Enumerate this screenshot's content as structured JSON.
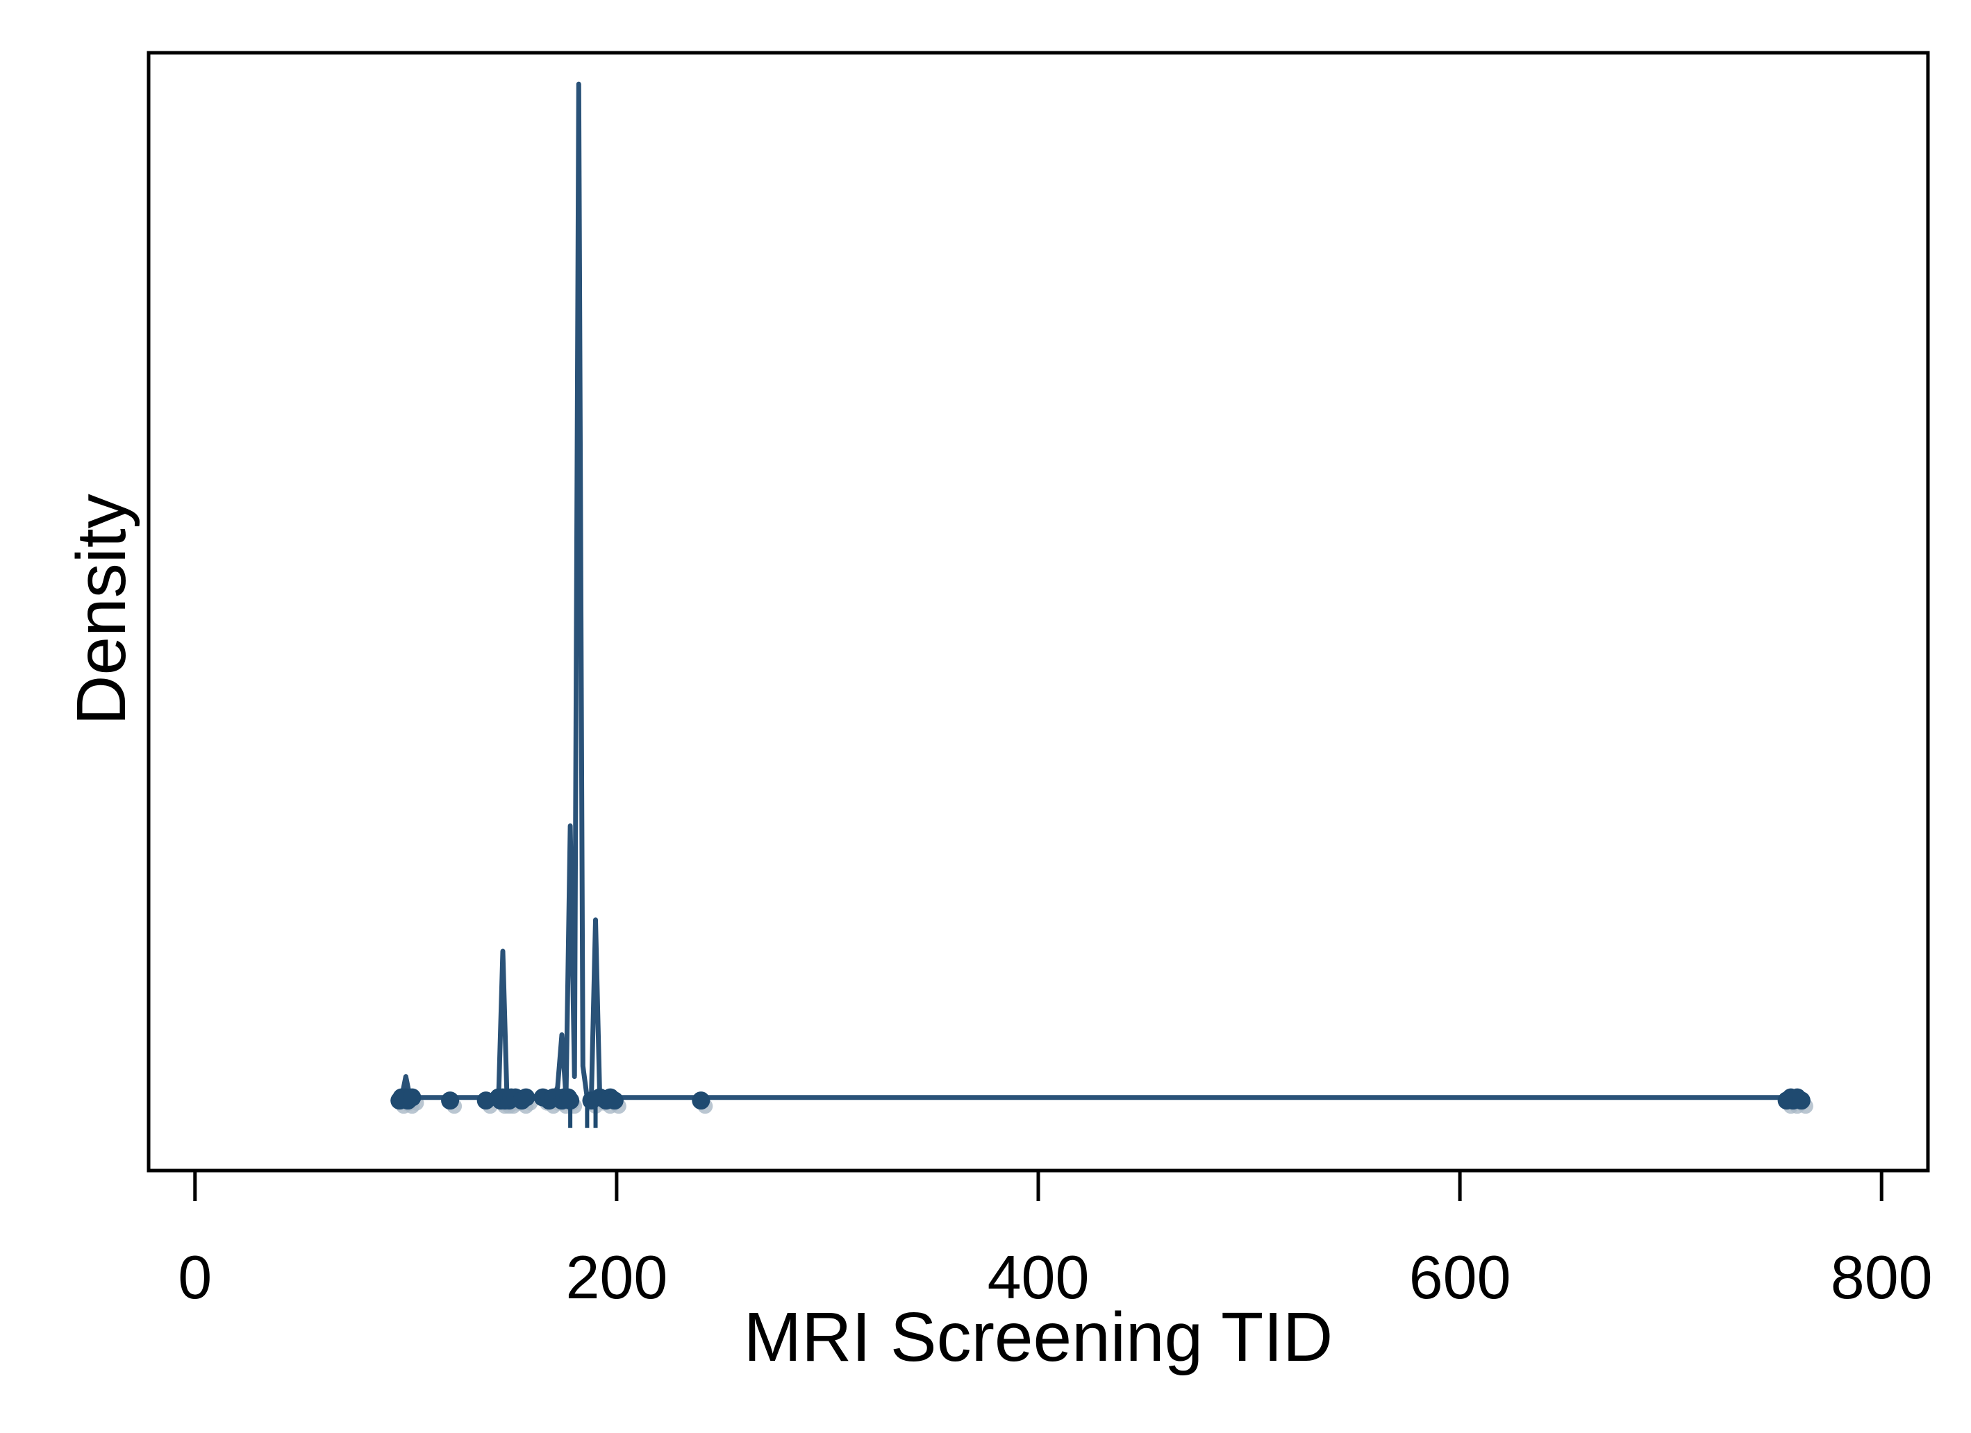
{
  "chart_data": {
    "type": "line",
    "title": "",
    "xlabel": "MRI Screening TID",
    "ylabel": "Density",
    "xlim": [
      -22,
      822
    ],
    "ylim": [
      -0.07,
      1.0
    ],
    "xticks": [
      0,
      200,
      400,
      600,
      800
    ],
    "yticks": [],
    "grid": false,
    "legend": "none",
    "colors": {
      "line": "#2a5278",
      "marker": "#1f4a70",
      "marker_faint": "#a9b8c6",
      "axis": "#000000"
    },
    "series": [
      {
        "x": [
          98,
          100,
          102,
          120,
          140,
          144,
          146,
          148,
          150,
          155,
          170,
          172,
          174,
          176,
          178,
          180,
          182,
          184,
          186,
          188,
          190,
          192,
          194,
          196,
          198,
          250,
          755,
          757,
          759,
          762
        ],
        "y": [
          0,
          0.02,
          0,
          0,
          0,
          0,
          0.14,
          0,
          0,
          0,
          0,
          0.01,
          0.06,
          0,
          0.26,
          0.02,
          0.97,
          0.03,
          0,
          0,
          0.17,
          0,
          0,
          0,
          0,
          0,
          0,
          0.005,
          0,
          0
        ]
      }
    ],
    "points": {
      "x": [
        97,
        98,
        100,
        101,
        103,
        121,
        138,
        144,
        145,
        146,
        147,
        148,
        149,
        150,
        152,
        155,
        157,
        165,
        168,
        170,
        172,
        174,
        175,
        177,
        178,
        188,
        192,
        195,
        197,
        199,
        240,
        755,
        757,
        758,
        760,
        762
      ],
      "y": [
        -0.003,
        0,
        0,
        -0.003,
        0,
        -0.003,
        -0.003,
        0,
        -0.003,
        0,
        -0.003,
        0,
        -0.003,
        0,
        0,
        -0.003,
        0,
        0,
        -0.003,
        0,
        0,
        -0.003,
        0,
        0,
        -0.003,
        -0.003,
        0,
        -0.003,
        0,
        -0.003,
        -0.003,
        -0.003,
        0,
        -0.003,
        0,
        -0.003
      ]
    },
    "rug": {
      "x": [
        178,
        186,
        190
      ]
    }
  }
}
